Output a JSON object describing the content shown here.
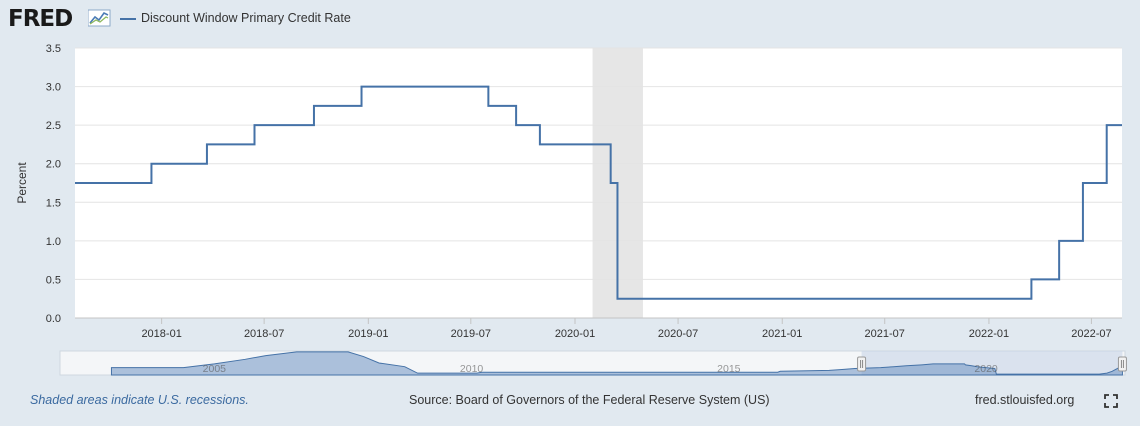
{
  "header": {
    "logo_text": "FRED",
    "legend_label": "Discount Window Primary Credit Rate",
    "series_color": "#4572a7"
  },
  "footer": {
    "note": "Shaded areas indicate U.S. recessions.",
    "source": "Source: Board of Governors of the Federal Reserve System (US)",
    "site": "fred.stlouisfed.org",
    "fullscreen_icon": "expand-icon"
  },
  "chart_data": {
    "type": "line",
    "ylabel": "Percent",
    "ylim": [
      0,
      3.5
    ],
    "yticks": [
      "0.0",
      "0.5",
      "1.0",
      "1.5",
      "2.0",
      "2.5",
      "3.0",
      "3.5"
    ],
    "xlim": [
      "2017-08-01",
      "2022-08-24"
    ],
    "xticks": [
      {
        "date": "2018-01-01",
        "label": "2018-01"
      },
      {
        "date": "2018-07-01",
        "label": "2018-07"
      },
      {
        "date": "2019-01-01",
        "label": "2019-01"
      },
      {
        "date": "2019-07-01",
        "label": "2019-07"
      },
      {
        "date": "2020-01-01",
        "label": "2020-01"
      },
      {
        "date": "2020-07-01",
        "label": "2020-07"
      },
      {
        "date": "2021-01-01",
        "label": "2021-01"
      },
      {
        "date": "2021-07-01",
        "label": "2021-07"
      },
      {
        "date": "2022-01-01",
        "label": "2022-01"
      },
      {
        "date": "2022-07-01",
        "label": "2022-07"
      }
    ],
    "recession": {
      "start": "2020-02-01",
      "end": "2020-04-30",
      "color": "#e6e6e6"
    },
    "grid": true,
    "series": [
      {
        "name": "Discount Window Primary Credit Rate",
        "step": true,
        "points": [
          {
            "x": "2017-08-01",
            "y": 1.75
          },
          {
            "x": "2017-12-14",
            "y": 2.0
          },
          {
            "x": "2018-03-22",
            "y": 2.25
          },
          {
            "x": "2018-06-14",
            "y": 2.5
          },
          {
            "x": "2018-09-27",
            "y": 2.75
          },
          {
            "x": "2018-12-20",
            "y": 3.0
          },
          {
            "x": "2019-08-01",
            "y": 2.75
          },
          {
            "x": "2019-09-19",
            "y": 2.5
          },
          {
            "x": "2019-10-31",
            "y": 2.25
          },
          {
            "x": "2020-03-04",
            "y": 1.75
          },
          {
            "x": "2020-03-16",
            "y": 0.25
          },
          {
            "x": "2022-03-17",
            "y": 0.5
          },
          {
            "x": "2022-05-05",
            "y": 1.0
          },
          {
            "x": "2022-06-16",
            "y": 1.75
          },
          {
            "x": "2022-07-28",
            "y": 2.5
          },
          {
            "x": "2022-08-24",
            "y": 2.5
          }
        ]
      }
    ],
    "navigator": {
      "labels": [
        {
          "year": 2005,
          "label": "2005"
        },
        {
          "year": 2010,
          "label": "2010"
        },
        {
          "year": 2015,
          "label": "2015"
        },
        {
          "year": 2020,
          "label": "2020"
        }
      ],
      "range": [
        2002.0,
        2022.7
      ],
      "selected": [
        2017.58,
        2022.65
      ],
      "series": [
        {
          "year": 2003.0,
          "y": 2.0
        },
        {
          "year": 2004.4,
          "y": 2.0
        },
        {
          "year": 2005.0,
          "y": 3.0
        },
        {
          "year": 2005.6,
          "y": 4.25
        },
        {
          "year": 2006.0,
          "y": 5.25
        },
        {
          "year": 2006.6,
          "y": 6.25
        },
        {
          "year": 2007.6,
          "y": 6.25
        },
        {
          "year": 2007.9,
          "y": 5.0
        },
        {
          "year": 2008.2,
          "y": 3.25
        },
        {
          "year": 2008.7,
          "y": 2.25
        },
        {
          "year": 2008.95,
          "y": 0.5
        },
        {
          "year": 2010.1,
          "y": 0.5
        },
        {
          "year": 2010.2,
          "y": 0.75
        },
        {
          "year": 2015.95,
          "y": 0.75
        },
        {
          "year": 2016.0,
          "y": 1.0
        },
        {
          "year": 2016.95,
          "y": 1.25
        },
        {
          "year": 2017.2,
          "y": 1.5
        },
        {
          "year": 2017.45,
          "y": 1.75
        },
        {
          "year": 2017.95,
          "y": 2.0
        },
        {
          "year": 2018.2,
          "y": 2.25
        },
        {
          "year": 2018.45,
          "y": 2.5
        },
        {
          "year": 2018.75,
          "y": 2.75
        },
        {
          "year": 2018.97,
          "y": 3.0
        },
        {
          "year": 2019.58,
          "y": 3.0
        },
        {
          "year": 2019.6,
          "y": 2.75
        },
        {
          "year": 2019.72,
          "y": 2.5
        },
        {
          "year": 2019.83,
          "y": 2.25
        },
        {
          "year": 2020.17,
          "y": 1.75
        },
        {
          "year": 2020.2,
          "y": 0.25
        },
        {
          "year": 2022.2,
          "y": 0.25
        },
        {
          "year": 2022.35,
          "y": 0.5
        },
        {
          "year": 2022.45,
          "y": 1.0
        },
        {
          "year": 2022.55,
          "y": 1.75
        },
        {
          "year": 2022.65,
          "y": 2.5
        }
      ],
      "ymax": 6.5
    }
  }
}
